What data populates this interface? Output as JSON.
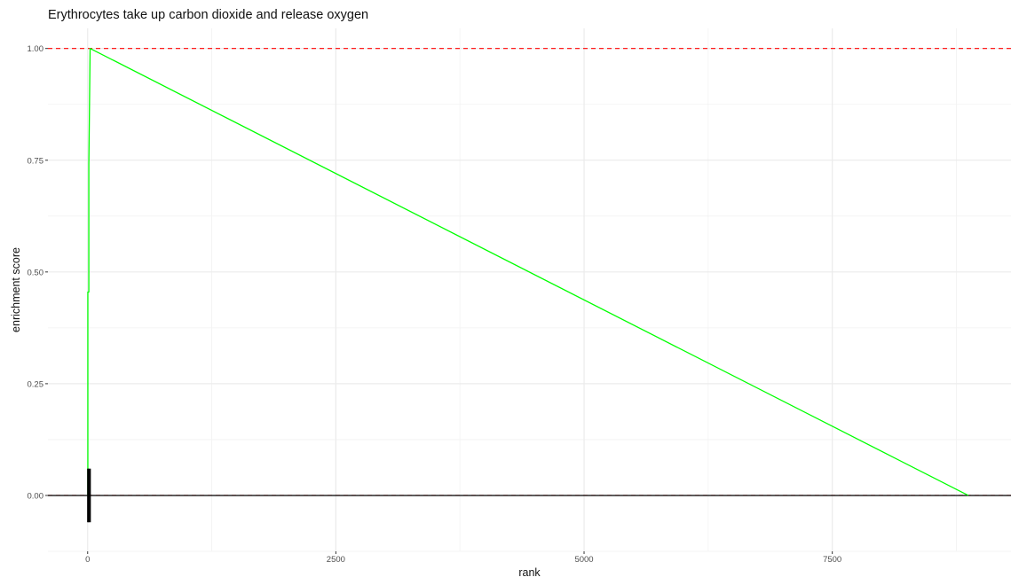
{
  "chart_data": {
    "type": "line",
    "title": "Erythrocytes take up carbon dioxide and release oxygen",
    "xlabel": "rank",
    "ylabel": "enrichment score",
    "xlim": [
      -400,
      9300
    ],
    "ylim": [
      -0.125,
      1.045
    ],
    "x_ticks": [
      0,
      2500,
      5000,
      7500
    ],
    "x_tick_labels": [
      "0",
      "2500",
      "5000",
      "7500"
    ],
    "y_ticks": [
      0.0,
      0.25,
      0.5,
      0.75,
      1.0
    ],
    "y_tick_labels": [
      "0.00",
      "0.25",
      "0.50",
      "0.75",
      "1.00"
    ],
    "grid": true,
    "series": [
      {
        "color": "#00ff00",
        "x": [
          0,
          2,
          2,
          12,
          12,
          25,
          8870
        ],
        "y": [
          0.0,
          0.0,
          0.455,
          0.455,
          0.74,
          1.0,
          0.0
        ]
      }
    ],
    "reference_lines": [
      {
        "y": 1.0,
        "color": "#ff0000",
        "style": "dashed"
      },
      {
        "y": 0.0,
        "color": "#ff0000",
        "style": "dashed"
      },
      {
        "y": 0.0,
        "color": "#000000",
        "style": "solid"
      }
    ],
    "gene_hits": [
      2,
      12,
      25
    ],
    "gene_hit_range": [
      -0.06,
      0.06
    ]
  }
}
